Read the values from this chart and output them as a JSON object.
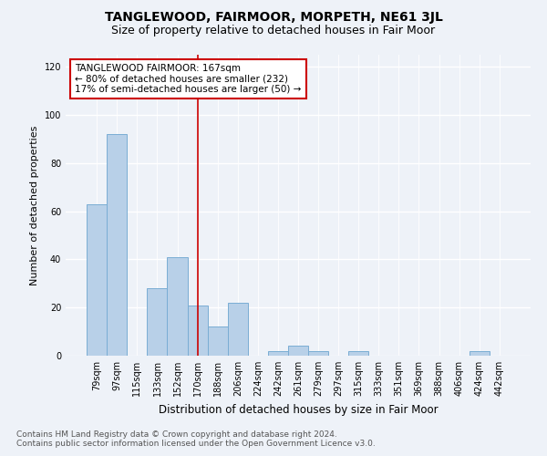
{
  "title": "TANGLEWOOD, FAIRMOOR, MORPETH, NE61 3JL",
  "subtitle": "Size of property relative to detached houses in Fair Moor",
  "xlabel": "Distribution of detached houses by size in Fair Moor",
  "ylabel": "Number of detached properties",
  "footnote1": "Contains HM Land Registry data © Crown copyright and database right 2024.",
  "footnote2": "Contains public sector information licensed under the Open Government Licence v3.0.",
  "annotation_line1": "TANGLEWOOD FAIRMOOR: 167sqm",
  "annotation_line2": "← 80% of detached houses are smaller (232)",
  "annotation_line3": "17% of semi-detached houses are larger (50) →",
  "categories": [
    "79sqm",
    "97sqm",
    "115sqm",
    "133sqm",
    "152sqm",
    "170sqm",
    "188sqm",
    "206sqm",
    "224sqm",
    "242sqm",
    "261sqm",
    "279sqm",
    "297sqm",
    "315sqm",
    "333sqm",
    "351sqm",
    "369sqm",
    "388sqm",
    "406sqm",
    "424sqm",
    "442sqm"
  ],
  "values": [
    63,
    92,
    0,
    28,
    41,
    21,
    12,
    22,
    0,
    2,
    4,
    2,
    0,
    2,
    0,
    0,
    0,
    0,
    0,
    2,
    0
  ],
  "bar_color": "#b8d0e8",
  "bar_edge_color": "#7aadd4",
  "red_line_index": 5,
  "ylim": [
    0,
    125
  ],
  "yticks": [
    0,
    20,
    40,
    60,
    80,
    100,
    120
  ],
  "background_color": "#eef2f8",
  "annotation_box_color": "#ffffff",
  "annotation_box_edge": "#cc0000",
  "red_line_color": "#cc0000",
  "grid_color": "#ffffff",
  "title_fontsize": 10,
  "subtitle_fontsize": 9,
  "annotation_fontsize": 7.5,
  "tick_fontsize": 7,
  "ylabel_fontsize": 8,
  "xlabel_fontsize": 8.5,
  "footnote_fontsize": 6.5
}
